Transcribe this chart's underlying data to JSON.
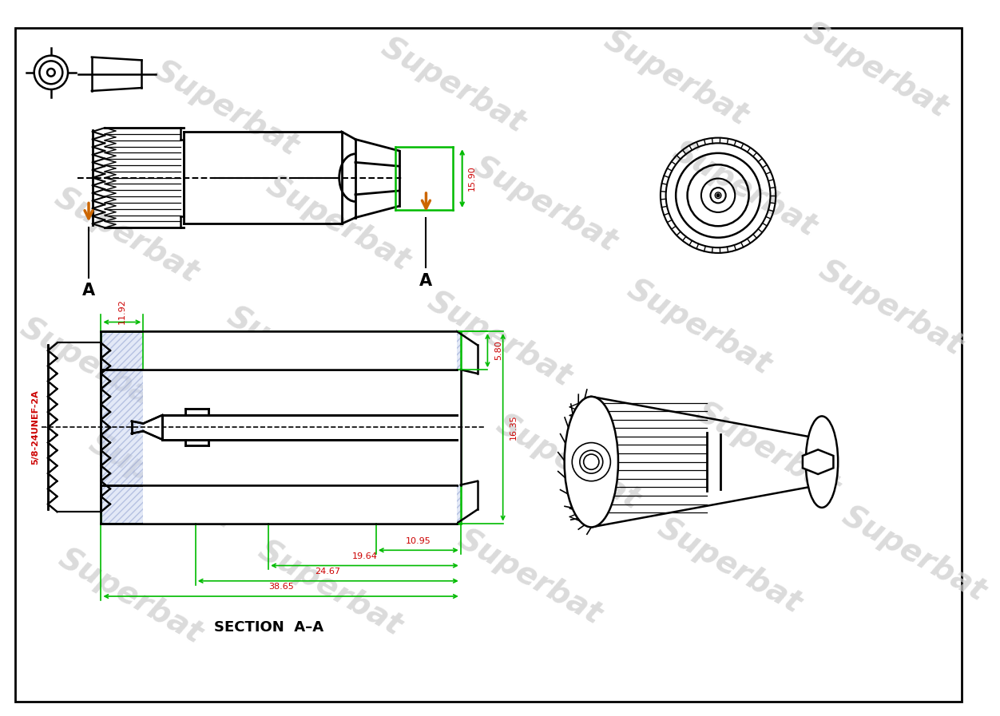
{
  "bg_color": "#ffffff",
  "line_color": "#000000",
  "green_color": "#00bb00",
  "red_color": "#cc0000",
  "orange_color": "#cc6600",
  "watermark_text": "Superbat",
  "dim_15_90": "15.90",
  "dim_5_80": "5.80",
  "dim_16_35": "16.35",
  "dim_11_92": "11.92",
  "dim_10_95": "10.95",
  "dim_19_64": "19.64",
  "dim_24_67": "24.67",
  "dim_38_65": "38.65",
  "thread_label": "5/8-24UNEF-2A",
  "section_label": "SECTION  A–A",
  "label_A": "A"
}
